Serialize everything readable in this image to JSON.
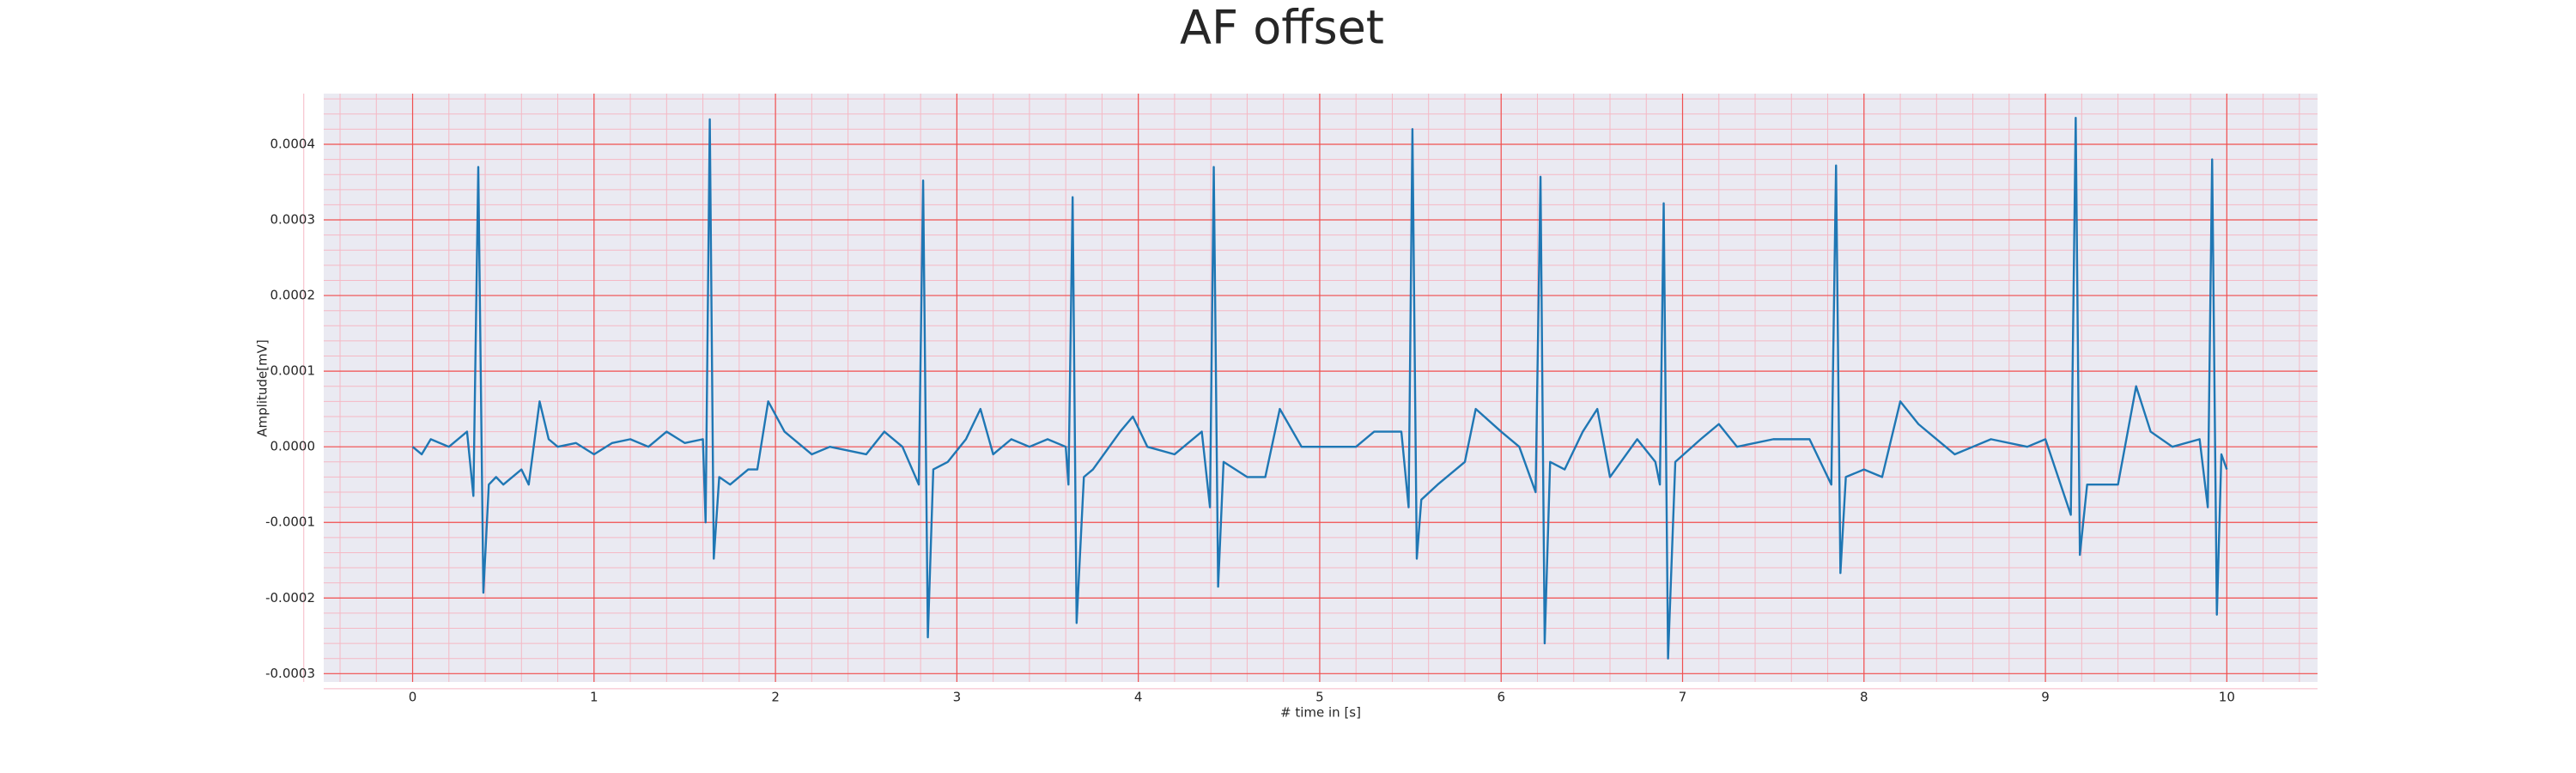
{
  "chart_data": {
    "type": "line",
    "title": "AF offset",
    "xlabel": "# time in [s]",
    "ylabel": "Amplitude[mV]",
    "xlim": [
      -0.49,
      10.5
    ],
    "ylim": [
      -0.000311,
      0.000467
    ],
    "xticks": [
      0,
      1,
      2,
      3,
      4,
      5,
      6,
      7,
      8,
      9,
      10
    ],
    "yticks": [
      -0.0003,
      -0.0002,
      -0.0001,
      {
        "value": 0,
        "label": "0.0000"
      },
      0.0001,
      0.0002,
      0.0003,
      0.0004
    ],
    "grid": true,
    "minor_grid": true,
    "background": "#eaeaf2",
    "grid_color": "#f05050",
    "minor_grid_color": "#f5b8c4",
    "x": [
      0,
      0.05,
      0.1,
      0.2,
      0.3,
      0.335,
      0.362,
      0.39,
      0.42,
      0.46,
      0.5,
      0.6,
      0.64,
      0.7,
      0.75,
      0.8,
      0.9,
      1.0,
      1.1,
      1.2,
      1.3,
      1.4,
      1.5,
      1.6,
      1.615,
      1.638,
      1.66,
      1.69,
      1.75,
      1.85,
      1.9,
      1.96,
      2.05,
      2.2,
      2.3,
      2.5,
      2.6,
      2.7,
      2.79,
      2.814,
      2.84,
      2.87,
      2.95,
      3.05,
      3.13,
      3.2,
      3.3,
      3.4,
      3.5,
      3.6,
      3.615,
      3.638,
      3.66,
      3.7,
      3.75,
      3.9,
      3.97,
      4.05,
      4.2,
      4.35,
      4.395,
      4.416,
      4.44,
      4.47,
      4.6,
      4.7,
      4.78,
      4.9,
      5.0,
      5.2,
      5.3,
      5.45,
      5.49,
      5.511,
      5.535,
      5.56,
      5.65,
      5.8,
      5.86,
      6.0,
      6.1,
      6.19,
      6.217,
      6.24,
      6.27,
      6.35,
      6.45,
      6.53,
      6.6,
      6.75,
      6.85,
      6.875,
      6.896,
      6.92,
      6.96,
      7.1,
      7.2,
      7.3,
      7.5,
      7.7,
      7.82,
      7.846,
      7.87,
      7.9,
      8.0,
      8.1,
      8.2,
      8.3,
      8.5,
      8.7,
      8.9,
      9.0,
      9.14,
      9.167,
      9.19,
      9.23,
      9.3,
      9.4,
      9.5,
      9.58,
      9.7,
      9.85,
      9.895,
      9.919,
      9.945,
      9.97,
      10.0
    ],
    "series": [
      {
        "name": "AF offset",
        "color": "#1f77b4",
        "values": [
          0,
          -1e-05,
          1e-05,
          0,
          2e-05,
          -6.5e-05,
          0.00037,
          -0.000193,
          -5e-05,
          -4e-05,
          -5e-05,
          -3e-05,
          -5e-05,
          6e-05,
          1e-05,
          0,
          5e-06,
          -1e-05,
          5e-06,
          1e-05,
          0,
          2e-05,
          5e-06,
          1e-05,
          -0.0001,
          0.000433,
          -0.000148,
          -4e-05,
          -5e-05,
          -3e-05,
          -3e-05,
          6e-05,
          2e-05,
          -1e-05,
          0,
          -1e-05,
          2e-05,
          0,
          -5e-05,
          0.000352,
          -0.000252,
          -3e-05,
          -2e-05,
          1e-05,
          5e-05,
          -1e-05,
          1e-05,
          0,
          1e-05,
          0,
          -5e-05,
          0.00033,
          -0.000233,
          -4e-05,
          -3e-05,
          2e-05,
          4e-05,
          0,
          -1e-05,
          2e-05,
          -8e-05,
          0.00037,
          -0.000185,
          -2e-05,
          -4e-05,
          -4e-05,
          5e-05,
          0,
          0,
          0,
          2e-05,
          2e-05,
          -8e-05,
          0.00042,
          -0.000148,
          -7e-05,
          -5e-05,
          -2e-05,
          5e-05,
          2e-05,
          0,
          -6e-05,
          0.000357,
          -0.00026,
          -2e-05,
          -3e-05,
          2e-05,
          5e-05,
          -4e-05,
          1e-05,
          -2e-05,
          -5e-05,
          0.000322,
          -0.00028,
          -2e-05,
          1e-05,
          3e-05,
          0,
          1e-05,
          1e-05,
          -5e-05,
          0.000372,
          -0.000167,
          -4e-05,
          -3e-05,
          -4e-05,
          6e-05,
          3e-05,
          -1e-05,
          1e-05,
          0,
          1e-05,
          -9e-05,
          0.000435,
          -0.000143,
          -5e-05,
          -5e-05,
          -5e-05,
          8e-05,
          2e-05,
          0,
          1e-05,
          -8e-05,
          0.00038,
          -0.000222,
          -1e-05,
          -3e-05
        ]
      }
    ]
  }
}
